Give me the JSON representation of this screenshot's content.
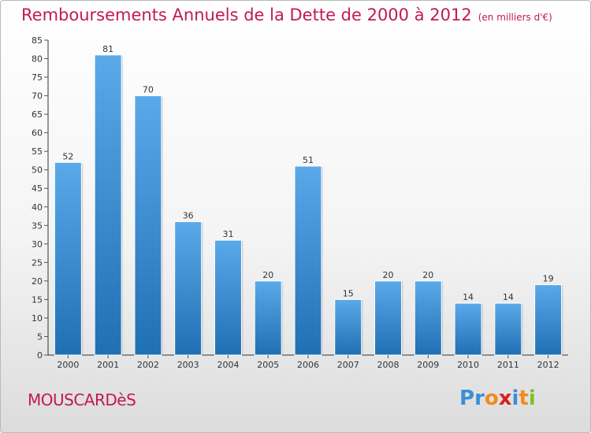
{
  "header": {
    "title": "Remboursements Annuels de la Dette de 2000 à 2012",
    "unit": "(en milliers d'€)"
  },
  "footer": {
    "location": "MOUSCARDèS",
    "logo_text": "Proxiti",
    "logo_letter_colors": [
      "#3a8fd6",
      "#3a8fd6",
      "#f28a1e",
      "#d4231c",
      "#3a8fd6",
      "#f28a1e",
      "#7fbf2a"
    ]
  },
  "colors": {
    "title": "#c2185b",
    "bar_light": "#5aaaea",
    "bar_dark": "#1f6fb3",
    "axis": "#333333",
    "grid_tick": "#555555"
  },
  "chart_data": {
    "type": "bar",
    "title": "Remboursements Annuels de la Dette de 2000 à 2012",
    "subtitle": "(en milliers d'€)",
    "xlabel": "",
    "ylabel": "",
    "categories": [
      "2000",
      "2001",
      "2002",
      "2003",
      "2004",
      "2005",
      "2006",
      "2007",
      "2008",
      "2009",
      "2010",
      "2011",
      "2012"
    ],
    "values": [
      52,
      81,
      70,
      36,
      31,
      20,
      51,
      15,
      20,
      20,
      14,
      14,
      19
    ],
    "ylim": [
      0,
      85
    ],
    "yticks": [
      0,
      5,
      10,
      15,
      20,
      25,
      30,
      35,
      40,
      45,
      50,
      55,
      60,
      65,
      70,
      75,
      80,
      85
    ],
    "grid": false,
    "legend": "none"
  }
}
